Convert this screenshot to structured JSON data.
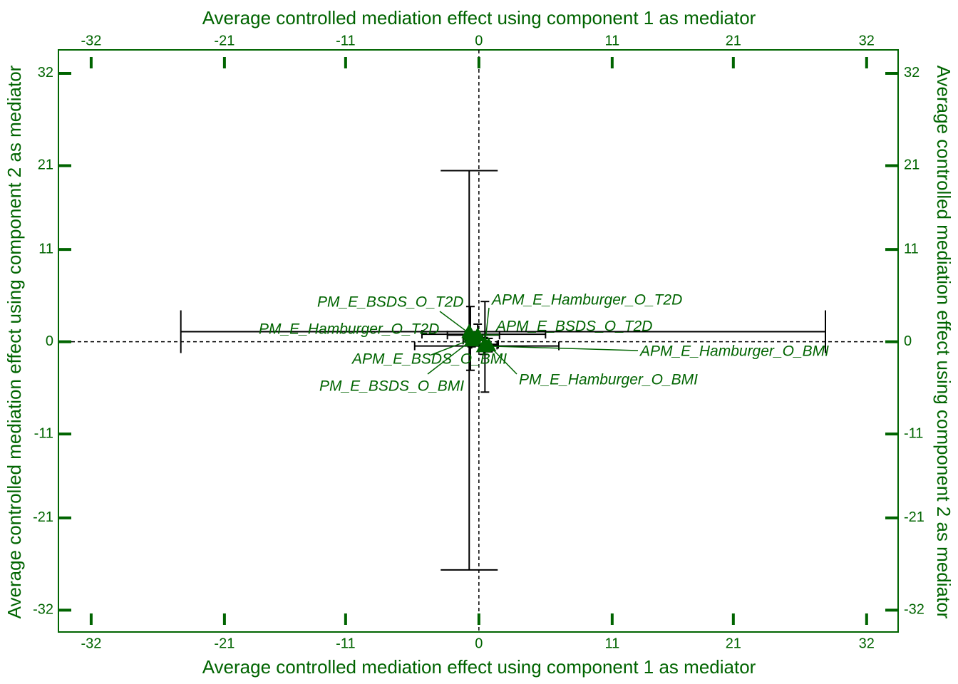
{
  "chart_data": {
    "type": "scatter",
    "xlabel": "Average controlled mediation effect using component 1 as mediator",
    "ylabel": "Average controlled mediation effect using component 2 as mediator",
    "xlim": [
      -34.7,
      34.6
    ],
    "ylim": [
      -34.6,
      34.8
    ],
    "xticks": [
      -32,
      -21,
      -11,
      0,
      11,
      21,
      32
    ],
    "yticks": [
      -32,
      -21,
      -11,
      0,
      11,
      21,
      32
    ],
    "color": "#006400",
    "points": [
      {
        "label": "PM_E_Hamburger_O_T2D",
        "x": -0.8,
        "y": 1.2,
        "x_low": -24.6,
        "x_high": 28.6,
        "y_low": -27.2,
        "y_high": 20.4
      },
      {
        "label": "PM_E_BSDS_O_T2D",
        "x": -0.7,
        "y": 0.9,
        "x_low": -4.7,
        "x_high": 5.5,
        "y_low": -3.4,
        "y_high": 4.2
      },
      {
        "label": "APM_E_Hamburger_O_T2D",
        "x": 0.5,
        "y": -0.3,
        "x_low": -0.6,
        "x_high": 1.6,
        "y_low": -6.0,
        "y_high": 4.8
      },
      {
        "label": "APM_E_BSDS_O_T2D",
        "x": -0.1,
        "y": 0.8,
        "x_low": -2.6,
        "x_high": 1.7,
        "y_low": -0.5,
        "y_high": 2.1
      },
      {
        "label": "APM_E_Hamburger_O_BMI",
        "x": 0.4,
        "y": -0.5,
        "x_low": -5.3,
        "x_high": 6.6,
        "y_low": -1.5,
        "y_high": 0.5
      },
      {
        "label": "PM_E_Hamburger_O_BMI",
        "x": 0.8,
        "y": -0.4,
        "x_low": 0.1,
        "x_high": 1.5,
        "y_low": -1.2,
        "y_high": 0.4
      },
      {
        "label": "APM_E_BSDS_O_BMI",
        "x": -0.4,
        "y": 0.4,
        "x_low": -1.1,
        "x_high": 0.3,
        "y_low": -0.4,
        "y_high": 1.2
      },
      {
        "label": "PM_E_BSDS_O_BMI",
        "x": -0.6,
        "y": 0.2,
        "x_low": -1.3,
        "x_high": 0.1,
        "y_low": -0.6,
        "y_high": 1.0
      }
    ]
  }
}
